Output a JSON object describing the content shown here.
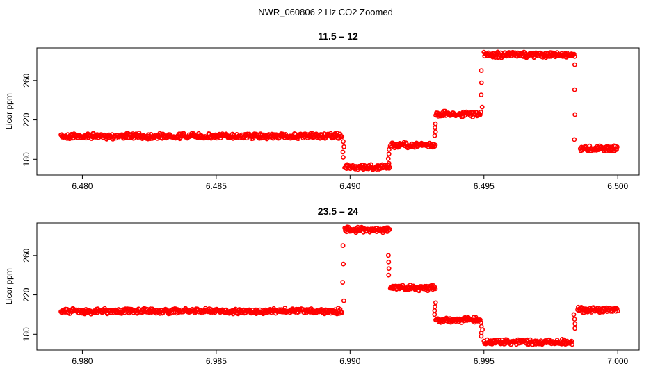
{
  "figure": {
    "title": "NWR_060806  2 Hz CO2 Zoomed",
    "point_color": "#ff0000"
  },
  "chart_data": [
    {
      "type": "scatter",
      "title": "11.5 – 12",
      "xlabel": "",
      "ylabel": "Licor ppm",
      "xlim": [
        6.4783,
        6.5008
      ],
      "ylim": [
        164,
        293
      ],
      "xticks": [
        6.48,
        6.485,
        6.49,
        6.495,
        6.5
      ],
      "xtick_labels": [
        "6.480",
        "6.485",
        "6.490",
        "6.495",
        "6.500"
      ],
      "yticks": [
        180,
        220,
        260
      ],
      "ytick_labels": [
        "180",
        "220",
        "260"
      ],
      "grid": false,
      "marker": "open-circle",
      "series": [
        {
          "segments": [
            {
              "x": [
                6.4792,
                6.4897
              ],
              "y": 203.5
            },
            {
              "x": [
                6.4898,
                6.4915
              ],
              "y": 172
            },
            {
              "x": [
                6.4915,
                6.4932
              ],
              "y": 194.5
            },
            {
              "x": [
                6.4932,
                6.4949
              ],
              "y": 226
            },
            {
              "x": [
                6.495,
                6.4984
              ],
              "y": 286
            },
            {
              "x": [
                6.4986,
                6.5
              ],
              "y": 191
            }
          ],
          "transitions": [
            {
              "x": 6.48975,
              "y": [
                182,
                198
              ]
            },
            {
              "x": 6.49145,
              "y": [
                176,
                190
              ]
            },
            {
              "x": 6.49318,
              "y": [
                204,
                216
              ]
            },
            {
              "x": 6.49492,
              "y": [
                233,
                270
              ]
            },
            {
              "x": 6.49838,
              "y": [
                200,
                276
              ]
            }
          ]
        }
      ]
    },
    {
      "type": "scatter",
      "title": "23.5 – 24",
      "xlabel": "",
      "ylabel": "Licor ppm",
      "xlim": [
        6.9783,
        7.0008
      ],
      "ylim": [
        164,
        293
      ],
      "xticks": [
        6.98,
        6.985,
        6.99,
        6.995,
        7.0
      ],
      "xtick_labels": [
        "6.980",
        "6.985",
        "6.990",
        "6.995",
        "7.000"
      ],
      "yticks": [
        180,
        220,
        260
      ],
      "ytick_labels": [
        "180",
        "220",
        "260"
      ],
      "grid": false,
      "marker": "open-circle",
      "series": [
        {
          "segments": [
            {
              "x": [
                6.9792,
                6.9897
              ],
              "y": 203.5
            },
            {
              "x": [
                6.9898,
                6.9915
              ],
              "y": 286
            },
            {
              "x": [
                6.9915,
                6.9932
              ],
              "y": 227
            },
            {
              "x": [
                6.9932,
                6.9949
              ],
              "y": 194.5
            },
            {
              "x": [
                6.995,
                6.9983
              ],
              "y": 172
            },
            {
              "x": [
                6.9985,
                7.0
              ],
              "y": 205
            }
          ],
          "transitions": [
            {
              "x": 6.98975,
              "y": [
                214,
                270
              ]
            },
            {
              "x": 6.99145,
              "y": [
                240,
                260
              ]
            },
            {
              "x": 6.99318,
              "y": [
                200,
                212
              ]
            },
            {
              "x": 6.99492,
              "y": [
                178,
                188
              ]
            },
            {
              "x": 6.99838,
              "y": [
                186,
                200
              ]
            }
          ]
        }
      ]
    }
  ]
}
